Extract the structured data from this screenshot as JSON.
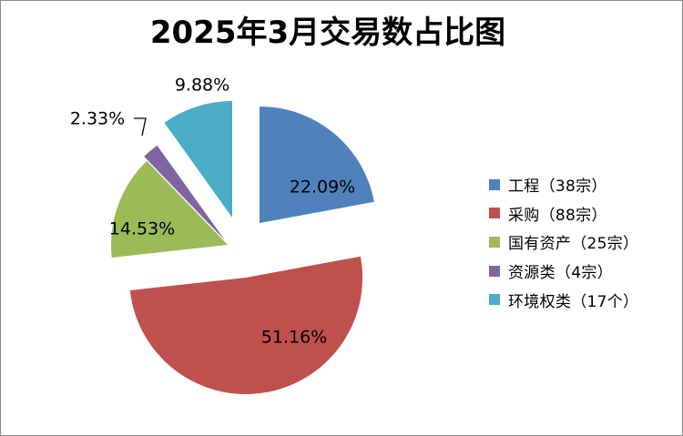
{
  "title": "2025年3月交易数占比图",
  "chart_data": {
    "type": "pie",
    "title": "2025年3月交易数占比图",
    "slices": [
      {
        "name": "工程",
        "legend": "工程（38宗）",
        "count": 38,
        "percent": 22.09,
        "label": "22.09%",
        "color": "#4F81BD",
        "exploded": false
      },
      {
        "name": "采购",
        "legend": "采购（88宗）",
        "count": 88,
        "percent": 51.16,
        "label": "51.16%",
        "color": "#C0504D",
        "exploded": true
      },
      {
        "name": "国有资产",
        "legend": "国有资产（25宗）",
        "count": 25,
        "percent": 14.53,
        "label": "14.53%",
        "color": "#9BBB59",
        "exploded": true
      },
      {
        "name": "资源类",
        "legend": "资源类（4宗）",
        "count": 4,
        "percent": 2.33,
        "label": "2.33%",
        "color": "#8064A2",
        "exploded": true
      },
      {
        "name": "环境权类",
        "legend": "环境权类（17个）",
        "count": 17,
        "percent": 9.88,
        "label": "9.88%",
        "color": "#4BACC6",
        "exploded": true
      }
    ],
    "legend_position": "right"
  }
}
